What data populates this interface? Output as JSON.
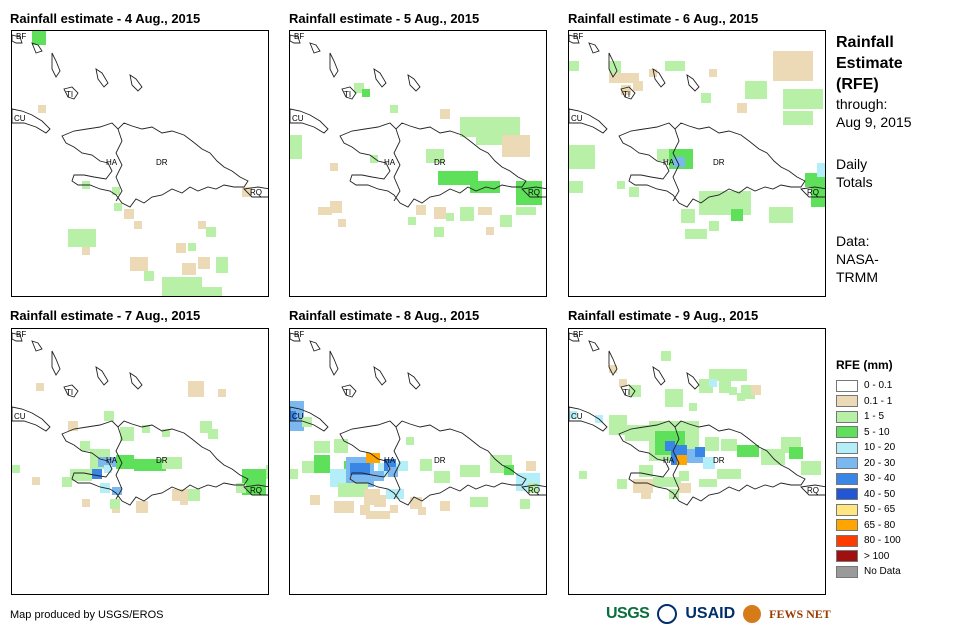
{
  "panels": [
    {
      "title": "Rainfall estimate - 4 Aug., 2015",
      "key": "d4"
    },
    {
      "title": "Rainfall estimate - 5 Aug., 2015",
      "key": "d5"
    },
    {
      "title": "Rainfall estimate - 6 Aug., 2015",
      "key": "d6"
    },
    {
      "title": "Rainfall estimate - 7 Aug., 2015",
      "key": "d7"
    },
    {
      "title": "Rainfall estimate - 8 Aug., 2015",
      "key": "d8"
    },
    {
      "title": "Rainfall estimate - 9 Aug., 2015",
      "key": "d9"
    }
  ],
  "map_labels": {
    "bf": "BF",
    "cu": "CU",
    "ti": "TI",
    "ha": "HA",
    "dr": "DR",
    "rq": "RQ"
  },
  "side": {
    "title_line1": "Rainfall",
    "title_line2": "Estimate",
    "title_line3": "(RFE)",
    "through": "through:",
    "date": "Aug 9, 2015",
    "totals_line1": "Daily",
    "totals_line2": "Totals",
    "data_line1": "Data:",
    "data_line2": "NASA-",
    "data_line3": "TRMM"
  },
  "legend": {
    "title": "RFE (mm)",
    "items": [
      {
        "label": "0 - 0.1",
        "color": "#ffffff"
      },
      {
        "label": "0.1 - 1",
        "color": "#ecd9b6"
      },
      {
        "label": "1 - 5",
        "color": "#b8f0a8"
      },
      {
        "label": "5 - 10",
        "color": "#5fe05a"
      },
      {
        "label": "10 - 20",
        "color": "#b4eef8"
      },
      {
        "label": "20 - 30",
        "color": "#7cb8f0"
      },
      {
        "label": "30 - 40",
        "color": "#3a86e6"
      },
      {
        "label": "40 - 50",
        "color": "#2356d4"
      },
      {
        "label": "50 - 65",
        "color": "#ffe680"
      },
      {
        "label": "65 - 80",
        "color": "#ffa500"
      },
      {
        "label": "80 - 100",
        "color": "#ff3c00"
      },
      {
        "label": "> 100",
        "color": "#a01010"
      },
      {
        "label": "No Data",
        "color": "#9a9a9a"
      }
    ]
  },
  "footer": {
    "credit": "Map produced by USGS/EROS"
  },
  "logos": {
    "usgs": "USGS",
    "usaid": "USAID",
    "fews": "FEWS NET"
  }
}
